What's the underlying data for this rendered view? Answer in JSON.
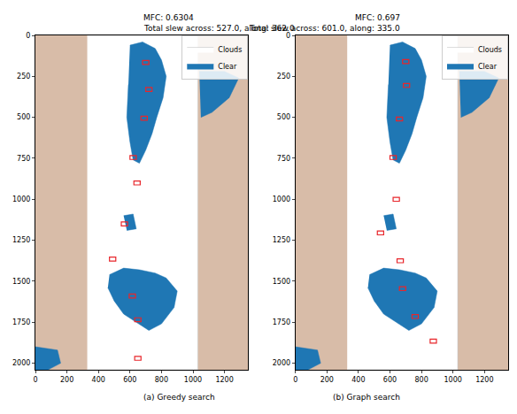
{
  "chart_data": [
    {
      "type": "area",
      "title": "MFC: 0.6304",
      "subtitle": "Total slew across: 527.0, along: 362.0",
      "caption": "(a) Greedy search",
      "xlim": [
        0,
        1350
      ],
      "ylim": [
        2040,
        0
      ],
      "xticks": [
        0,
        200,
        400,
        600,
        800,
        1000,
        1200
      ],
      "yticks": [
        0,
        250,
        500,
        750,
        1000,
        1250,
        1500,
        1750,
        2000
      ],
      "grid": false,
      "legend": "upper right",
      "series": [
        {
          "name": "Clouds",
          "color": "#ffffff",
          "polygons": [
            {
              "x": [
                330,
                1030,
                1030,
                330
              ],
              "y": [
                0,
                0,
                2040,
                2040
              ]
            }
          ]
        },
        {
          "name": "Clear",
          "color": "#1f77b4",
          "polygons": [
            {
              "x": [
                600,
                680,
                760,
                800,
                830,
                810,
                770,
                740,
                700,
                660,
                620,
                600,
                580,
                590
              ],
              "y": [
                60,
                40,
                80,
                150,
                250,
                380,
                500,
                600,
                700,
                780,
                760,
                650,
                500,
                300
              ]
            },
            {
              "x": [
                470,
                560,
                660,
                760,
                830,
                900,
                880,
                800,
                720,
                640,
                560,
                500,
                460
              ],
              "y": [
                1460,
                1420,
                1430,
                1450,
                1480,
                1560,
                1660,
                1760,
                1800,
                1750,
                1700,
                1620,
                1540
              ]
            },
            {
              "x": [
                1040,
                1200,
                1290,
                1230,
                1120,
                1050
              ],
              "y": [
                220,
                220,
                260,
                380,
                470,
                500
              ]
            },
            {
              "x": [
                0,
                140,
                160,
                80,
                0
              ],
              "y": [
                1900,
                1920,
                2000,
                2040,
                2040
              ]
            },
            {
              "x": [
                560,
                620,
                640,
                580
              ],
              "y": [
                1100,
                1090,
                1180,
                1190
              ]
            }
          ]
        }
      ],
      "targets": {
        "color": "#e8262b",
        "marker": "rectangle",
        "x": [
          700,
          720,
          690,
          620,
          645,
          565,
          490,
          615,
          650,
          650
        ],
        "y": [
          165,
          330,
          505,
          745,
          900,
          1150,
          1365,
          1590,
          1735,
          1970
        ]
      }
    },
    {
      "type": "area",
      "title": "MFC: 0.697",
      "subtitle": "Total slew across: 601.0, along: 335.0",
      "caption": "(b) Graph search",
      "xlim": [
        0,
        1350
      ],
      "ylim": [
        2040,
        0
      ],
      "xticks": [
        0,
        200,
        400,
        600,
        800,
        1000,
        1200
      ],
      "yticks": [
        0,
        250,
        500,
        750,
        1000,
        1250,
        1500,
        1750,
        2000
      ],
      "grid": false,
      "legend": "upper right",
      "series": [
        {
          "name": "Clouds",
          "color": "#ffffff",
          "polygons": [
            {
              "x": [
                330,
                1030,
                1030,
                330
              ],
              "y": [
                0,
                0,
                2040,
                2040
              ]
            }
          ]
        },
        {
          "name": "Clear",
          "color": "#1f77b4",
          "polygons": [
            {
              "x": [
                600,
                680,
                760,
                800,
                830,
                810,
                770,
                740,
                700,
                660,
                620,
                600,
                580,
                590
              ],
              "y": [
                60,
                40,
                80,
                150,
                250,
                380,
                500,
                600,
                700,
                780,
                760,
                650,
                500,
                300
              ]
            },
            {
              "x": [
                470,
                560,
                660,
                760,
                830,
                900,
                880,
                800,
                720,
                640,
                560,
                500,
                460
              ],
              "y": [
                1460,
                1420,
                1430,
                1450,
                1480,
                1560,
                1660,
                1760,
                1800,
                1750,
                1700,
                1620,
                1540
              ]
            },
            {
              "x": [
                1040,
                1200,
                1290,
                1230,
                1120,
                1050
              ],
              "y": [
                220,
                220,
                260,
                380,
                470,
                500
              ]
            },
            {
              "x": [
                0,
                140,
                160,
                80,
                0
              ],
              "y": [
                1900,
                1920,
                2000,
                2040,
                2040
              ]
            },
            {
              "x": [
                560,
                620,
                640,
                580
              ],
              "y": [
                1100,
                1090,
                1180,
                1190
              ]
            }
          ]
        }
      ],
      "targets": {
        "color": "#e8262b",
        "marker": "rectangle",
        "x": [
          700,
          705,
          660,
          620,
          640,
          540,
          665,
          680,
          760,
          875
        ],
        "y": [
          160,
          305,
          510,
          745,
          1000,
          1205,
          1375,
          1545,
          1715,
          1865
        ]
      }
    }
  ]
}
